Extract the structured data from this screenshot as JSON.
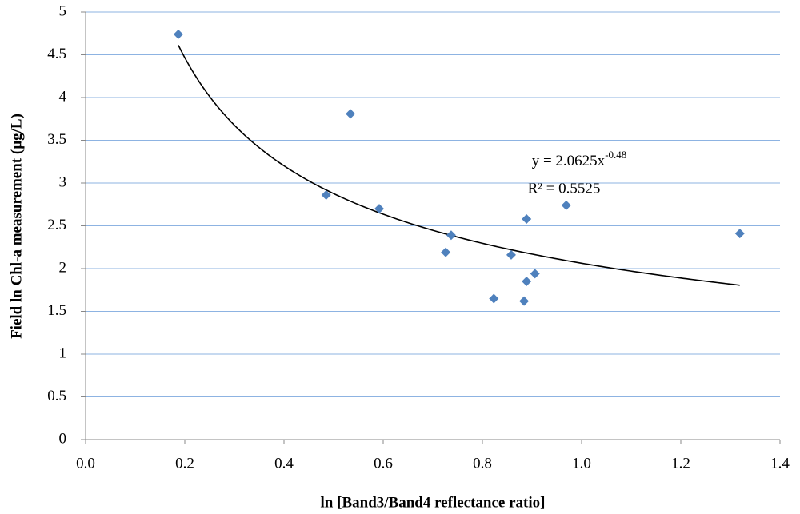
{
  "chart_data": {
    "type": "scatter",
    "x_label": "ln [Band3/Band4 reflectance ratio]",
    "y_label": "Field ln Chl-a measurement (µg/L)",
    "x": [
      0.187,
      0.485,
      0.534,
      0.592,
      0.726,
      0.737,
      0.823,
      0.858,
      0.884,
      0.889,
      0.889,
      0.906,
      0.969,
      1.319
    ],
    "values": [
      4.74,
      2.86,
      3.81,
      2.7,
      2.19,
      2.39,
      1.65,
      2.16,
      1.62,
      1.85,
      2.58,
      1.94,
      2.74,
      2.41
    ],
    "color": "#4f81bd",
    "xlim": [
      0,
      1.4
    ],
    "xticks": [
      {
        "value": 0,
        "label": "0.0"
      },
      0.2,
      0.4,
      0.6,
      0.8,
      {
        "value": 1,
        "label": "1.0"
      },
      1.2,
      1.4
    ],
    "ylim": [
      0,
      5
    ],
    "yticks": [
      0,
      0.5,
      1,
      1.5,
      2,
      2.5,
      3,
      3.5,
      4,
      4.5,
      5
    ],
    "grid": true,
    "grid_color": "#8db3e2",
    "trendline": {
      "coefficient": 2.0625,
      "exponent": -0.48,
      "color": "#000000",
      "equation": "y = 2.0625x",
      "r_squared": "R² = 0.5525"
    }
  }
}
